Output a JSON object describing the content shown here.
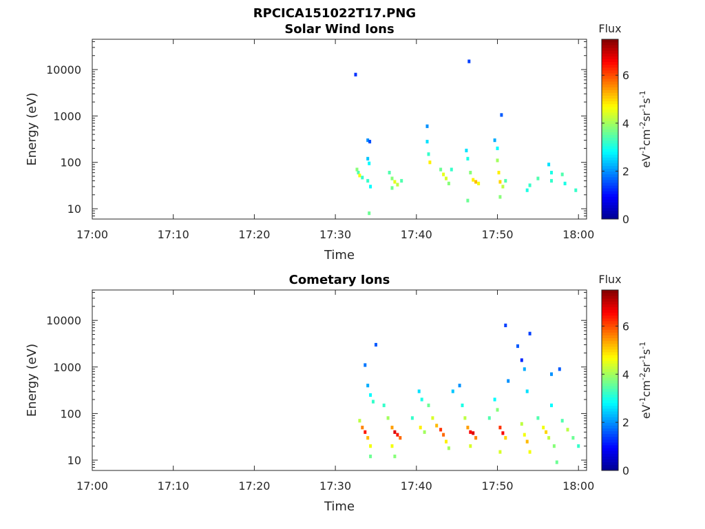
{
  "figure_title": "RPCICA151022T17.PNG",
  "colorbar_scale": {
    "min": 0,
    "max": 7.5,
    "tick_labels": [
      "0",
      "2",
      "4",
      "6"
    ],
    "title": "Flux",
    "unit_parts": [
      "eV",
      "-1",
      "cm",
      "-2",
      "sr",
      "-1",
      "s",
      "-1"
    ]
  },
  "colormap": [
    "#00008f",
    "#0000ff",
    "#0080ff",
    "#00ffff",
    "#80ff80",
    "#ffff00",
    "#ff8000",
    "#ff0000",
    "#800000"
  ],
  "chart_data": [
    {
      "type": "heatmap",
      "title": "Solar Wind Ions",
      "xlabel": "Time",
      "ylabel": "Energy (eV)",
      "xlim": [
        "17:00",
        "18:01"
      ],
      "ylim": [
        6,
        45000
      ],
      "yscale": "log",
      "xticks": [
        "17:00",
        "17:10",
        "17:20",
        "17:30",
        "17:40",
        "17:50",
        "18:00"
      ],
      "yticks": [
        "10",
        "100",
        "1000",
        "10000"
      ],
      "clim": [
        0,
        7.5
      ],
      "points": [
        [
          "17:32:30",
          7800,
          1.3
        ],
        [
          "17:34:00",
          300,
          2.0
        ],
        [
          "17:34:15",
          280,
          1.5
        ],
        [
          "17:34:00",
          120,
          2.4
        ],
        [
          "17:34:10",
          95,
          2.8
        ],
        [
          "17:32:40",
          70,
          3.8
        ],
        [
          "17:32:50",
          60,
          3.4
        ],
        [
          "17:33:00",
          52,
          4.6
        ],
        [
          "17:33:20",
          47,
          3.2
        ],
        [
          "17:34:00",
          40,
          3.2
        ],
        [
          "17:34:20",
          30,
          2.8
        ],
        [
          "17:34:10",
          8,
          3.6
        ],
        [
          "17:36:40",
          60,
          3.4
        ],
        [
          "17:37:00",
          45,
          3.8
        ],
        [
          "17:37:20",
          38,
          4.5
        ],
        [
          "17:37:40",
          33,
          4.2
        ],
        [
          "17:38:10",
          40,
          3.4
        ],
        [
          "17:37:00",
          28,
          3.6
        ],
        [
          "17:41:20",
          600,
          2.0
        ],
        [
          "17:41:20",
          280,
          2.6
        ],
        [
          "17:41:30",
          150,
          3.2
        ],
        [
          "17:41:40",
          100,
          4.8
        ],
        [
          "17:43:00",
          70,
          3.6
        ],
        [
          "17:43:20",
          55,
          4.5
        ],
        [
          "17:43:40",
          45,
          4.4
        ],
        [
          "17:44:00",
          35,
          3.8
        ],
        [
          "17:44:20",
          70,
          3.2
        ],
        [
          "17:46:30",
          15000,
          1.4
        ],
        [
          "17:46:10",
          180,
          2.6
        ],
        [
          "17:46:20",
          120,
          3.0
        ],
        [
          "17:46:40",
          60,
          3.8
        ],
        [
          "17:47:00",
          42,
          4.8
        ],
        [
          "17:47:20",
          38,
          5.2
        ],
        [
          "17:47:40",
          35,
          4.6
        ],
        [
          "17:46:20",
          15,
          3.6
        ],
        [
          "17:50:30",
          1050,
          1.6
        ],
        [
          "17:49:40",
          300,
          2.2
        ],
        [
          "17:50:00",
          200,
          2.8
        ],
        [
          "17:50:00",
          110,
          4.0
        ],
        [
          "17:50:10",
          60,
          4.8
        ],
        [
          "17:50:20",
          38,
          5.0
        ],
        [
          "17:50:40",
          30,
          4.2
        ],
        [
          "17:51:00",
          40,
          3.4
        ],
        [
          "17:50:20",
          18,
          3.8
        ],
        [
          "17:53:40",
          25,
          3.0
        ],
        [
          "17:54:00",
          32,
          3.2
        ],
        [
          "17:55:00",
          45,
          3.4
        ],
        [
          "17:56:20",
          90,
          2.6
        ],
        [
          "17:56:40",
          60,
          3.0
        ],
        [
          "17:56:40",
          40,
          3.2
        ],
        [
          "17:58:00",
          55,
          3.4
        ],
        [
          "17:58:20",
          35,
          3.0
        ],
        [
          "17:59:40",
          25,
          3.2
        ]
      ]
    },
    {
      "type": "heatmap",
      "title": "Cometary Ions",
      "xlabel": "Time",
      "ylabel": "Energy (eV)",
      "xlim": [
        "17:00",
        "18:01"
      ],
      "ylim": [
        6,
        45000
      ],
      "yscale": "log",
      "xticks": [
        "17:00",
        "17:10",
        "17:20",
        "17:30",
        "17:40",
        "17:50",
        "18:00"
      ],
      "yticks": [
        "10",
        "100",
        "1000",
        "10000"
      ],
      "clim": [
        0,
        7.5
      ],
      "points": [
        [
          "17:35:00",
          3000,
          1.6
        ],
        [
          "17:33:40",
          1100,
          1.8
        ],
        [
          "17:34:00",
          400,
          2.2
        ],
        [
          "17:34:20",
          250,
          2.8
        ],
        [
          "17:34:40",
          180,
          3.2
        ],
        [
          "17:33:00",
          70,
          4.2
        ],
        [
          "17:33:20",
          50,
          5.6
        ],
        [
          "17:33:40",
          40,
          6.4
        ],
        [
          "17:34:00",
          30,
          5.2
        ],
        [
          "17:34:20",
          20,
          4.6
        ],
        [
          "17:34:20",
          12,
          3.6
        ],
        [
          "17:36:00",
          150,
          3.2
        ],
        [
          "17:36:30",
          80,
          4.0
        ],
        [
          "17:37:00",
          50,
          5.4
        ],
        [
          "17:37:20",
          40,
          6.8
        ],
        [
          "17:37:40",
          35,
          6.4
        ],
        [
          "17:38:00",
          30,
          5.8
        ],
        [
          "17:37:00",
          20,
          4.6
        ],
        [
          "17:37:20",
          12,
          3.8
        ],
        [
          "17:39:30",
          80,
          3.2
        ],
        [
          "17:40:20",
          300,
          2.6
        ],
        [
          "17:40:40",
          200,
          3.0
        ],
        [
          "17:40:30",
          50,
          4.8
        ],
        [
          "17:41:00",
          40,
          4.0
        ],
        [
          "17:41:30",
          150,
          3.6
        ],
        [
          "17:42:00",
          80,
          4.4
        ],
        [
          "17:42:30",
          55,
          5.2
        ],
        [
          "17:43:00",
          45,
          6.2
        ],
        [
          "17:43:20",
          35,
          5.8
        ],
        [
          "17:43:40",
          25,
          4.8
        ],
        [
          "17:44:00",
          18,
          4.0
        ],
        [
          "17:44:30",
          300,
          2.4
        ],
        [
          "17:45:20",
          400,
          2.0
        ],
        [
          "17:45:40",
          150,
          3.0
        ],
        [
          "17:46:00",
          80,
          4.2
        ],
        [
          "17:46:20",
          50,
          5.4
        ],
        [
          "17:46:40",
          40,
          6.6
        ],
        [
          "17:47:00",
          38,
          6.8
        ],
        [
          "17:47:20",
          30,
          5.6
        ],
        [
          "17:46:40",
          20,
          4.4
        ],
        [
          "17:49:00",
          80,
          3.4
        ],
        [
          "17:49:40",
          200,
          2.8
        ],
        [
          "17:50:00",
          120,
          3.8
        ],
        [
          "17:50:20",
          50,
          6.2
        ],
        [
          "17:50:40",
          38,
          6.6
        ],
        [
          "17:51:00",
          30,
          5.0
        ],
        [
          "17:50:20",
          15,
          4.4
        ],
        [
          "17:51:00",
          7800,
          1.4
        ],
        [
          "17:51:20",
          500,
          2.0
        ],
        [
          "17:52:30",
          2800,
          1.6
        ],
        [
          "17:53:00",
          1400,
          1.2
        ],
        [
          "17:53:20",
          900,
          2.2
        ],
        [
          "17:53:40",
          300,
          2.6
        ],
        [
          "17:54:00",
          5200,
          1.4
        ],
        [
          "17:53:00",
          60,
          4.2
        ],
        [
          "17:53:20",
          35,
          4.6
        ],
        [
          "17:53:40",
          25,
          5.2
        ],
        [
          "17:54:00",
          15,
          4.6
        ],
        [
          "17:55:00",
          80,
          3.4
        ],
        [
          "17:55:40",
          50,
          4.6
        ],
        [
          "17:56:00",
          40,
          5.0
        ],
        [
          "17:56:20",
          30,
          4.2
        ],
        [
          "17:56:40",
          150,
          2.8
        ],
        [
          "17:56:40",
          700,
          2.0
        ],
        [
          "17:57:00",
          20,
          3.8
        ],
        [
          "17:57:40",
          900,
          1.6
        ],
        [
          "17:58:00",
          70,
          3.4
        ],
        [
          "17:58:40",
          45,
          4.2
        ],
        [
          "17:59:20",
          30,
          3.6
        ],
        [
          "18:00:00",
          20,
          3.2
        ],
        [
          "17:57:20",
          9,
          3.6
        ]
      ]
    }
  ]
}
